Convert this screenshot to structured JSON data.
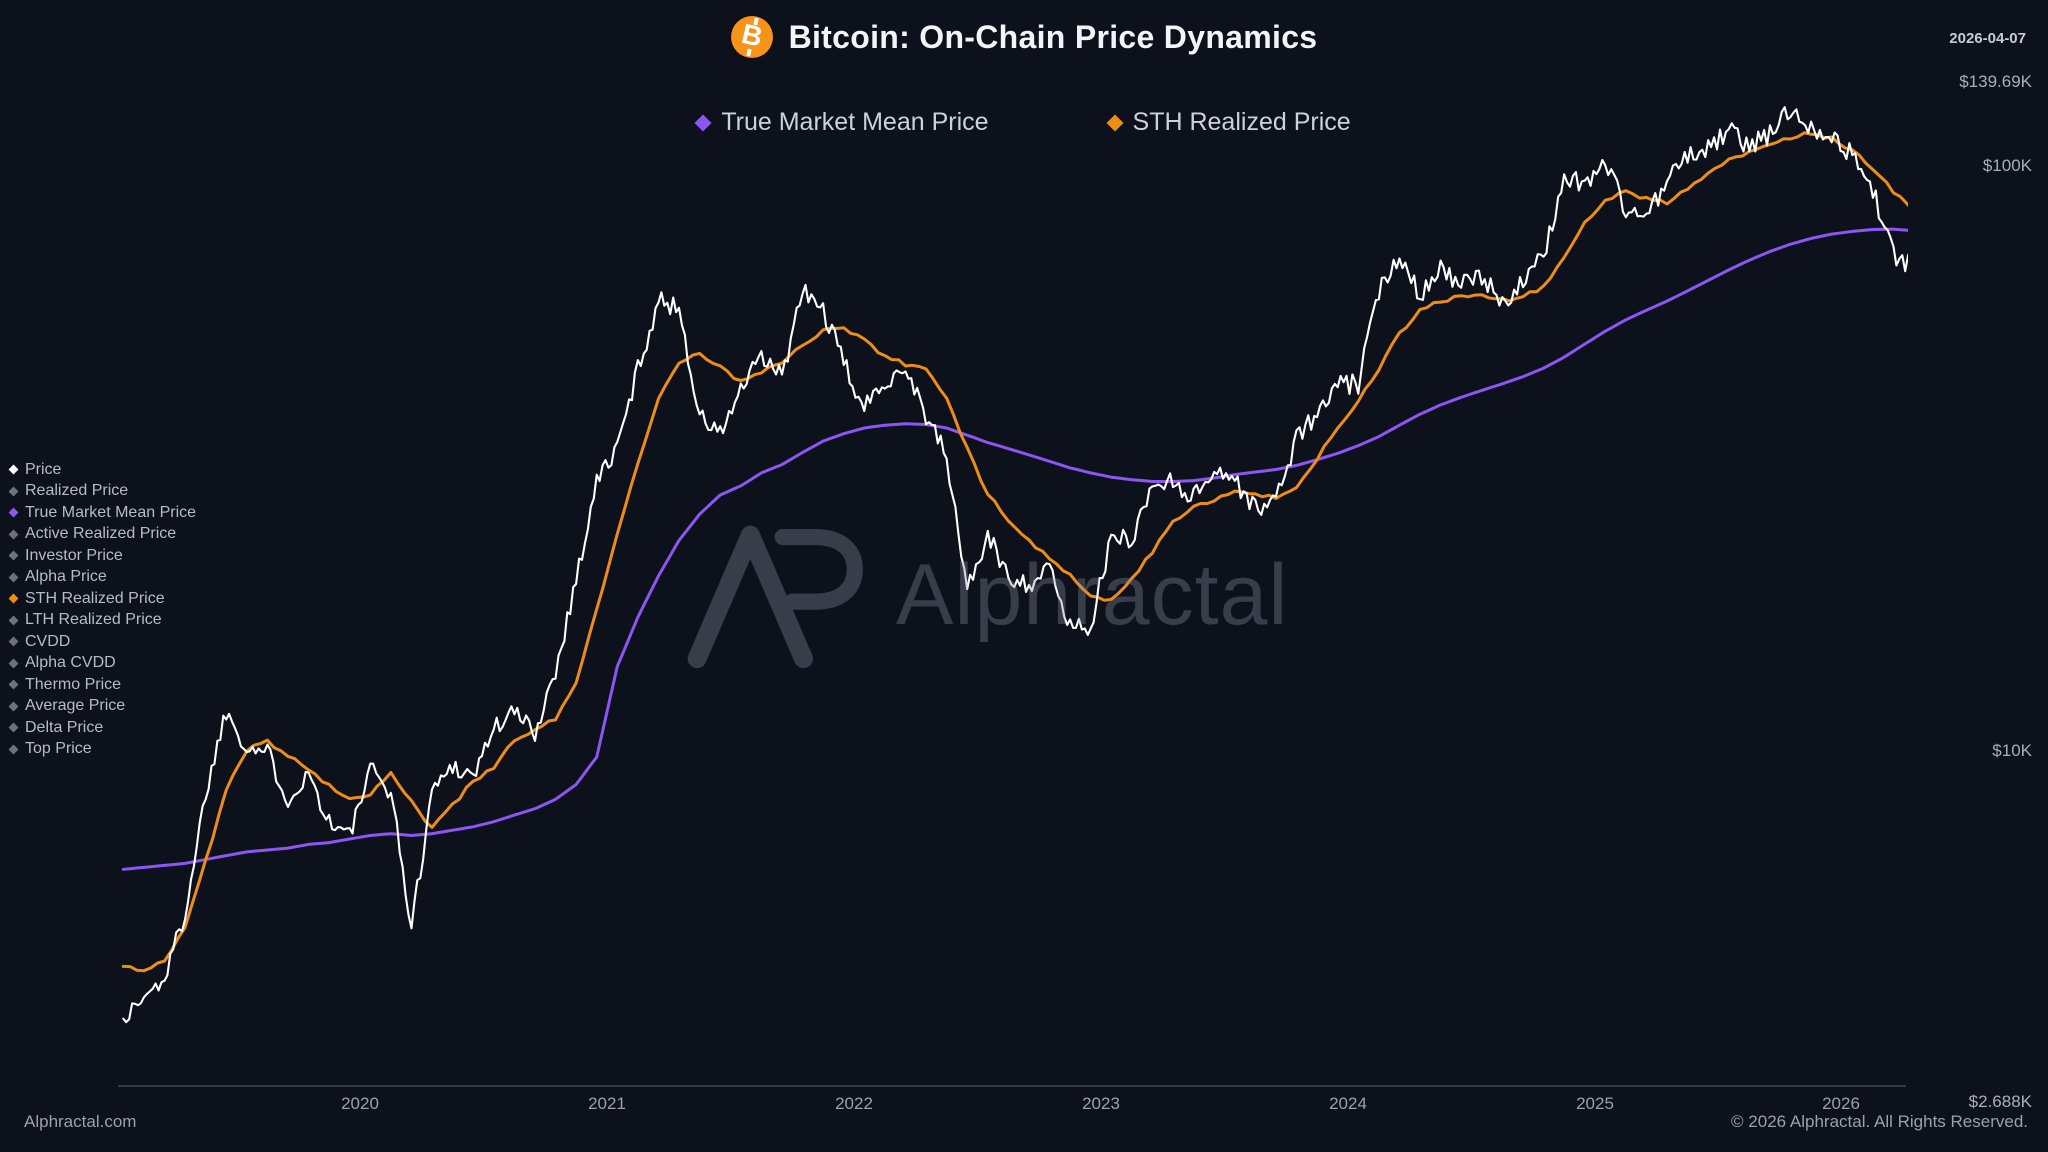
{
  "header": {
    "title": "Bitcoin: On-Chain Price Dynamics",
    "date": "2026-04-07",
    "icon_color": "#f7931a"
  },
  "top_legend": [
    {
      "label": "True Market Mean Price",
      "color": "#8d55f2"
    },
    {
      "label": "STH Realized Price",
      "color": "#ee8c18"
    }
  ],
  "sidebar": {
    "items": [
      {
        "label": "Price",
        "color": "#ffffff",
        "active": true
      },
      {
        "label": "Realized Price",
        "color": "#6b7280",
        "active": false
      },
      {
        "label": "True Market Mean Price",
        "color": "#8d55f2",
        "active": true
      },
      {
        "label": "Active Realized Price",
        "color": "#6b7280",
        "active": false
      },
      {
        "label": "Investor Price",
        "color": "#6b7280",
        "active": false
      },
      {
        "label": "Alpha Price",
        "color": "#6b7280",
        "active": false
      },
      {
        "label": "STH Realized Price",
        "color": "#ee8c18",
        "active": true
      },
      {
        "label": "LTH Realized Price",
        "color": "#6b7280",
        "active": false
      },
      {
        "label": "CVDD",
        "color": "#6b7280",
        "active": false
      },
      {
        "label": "Alpha CVDD",
        "color": "#6b7280",
        "active": false
      },
      {
        "label": "Thermo Price",
        "color": "#6b7280",
        "active": false
      },
      {
        "label": "Average Price",
        "color": "#6b7280",
        "active": false
      },
      {
        "label": "Delta Price",
        "color": "#6b7280",
        "active": false
      },
      {
        "label": "Top Price",
        "color": "#6b7280",
        "active": false
      }
    ]
  },
  "axes": {
    "y_labels": [
      {
        "text": "$139.69K",
        "value_usd": 139690
      },
      {
        "text": "$100K",
        "value_usd": 100000
      },
      {
        "text": "$10K",
        "value_usd": 10000
      },
      {
        "text": "$2.688K",
        "value_usd": 2688
      }
    ],
    "x_labels": [
      "2020",
      "2021",
      "2022",
      "2023",
      "2024",
      "2025",
      "2026"
    ]
  },
  "watermark": {
    "text": "Alphractal"
  },
  "footer": {
    "left": "Alphractal.com",
    "right": "© 2026 Alphractal. All Rights Reserved."
  },
  "chart_data": {
    "type": "line",
    "title": "Bitcoin: On-Chain Price Dynamics",
    "y_scale": "log",
    "y_axis_ticks_usd": [
      2688,
      10000,
      100000,
      139690
    ],
    "x_tick_years": [
      2020,
      2021,
      2022,
      2023,
      2024,
      2025,
      2026
    ],
    "x_start_year": 2019,
    "x_start_month": 1,
    "step": "monthly",
    "x_range_decimal_years": [
      2019.03,
      2026.27
    ],
    "legend_position": "top-center",
    "grid": false,
    "series": [
      {
        "name": "Price",
        "color": "#ffffff",
        "style": "volatile",
        "values_usd_thousands": [
          3.5,
          3.8,
          4.1,
          5.3,
          8.5,
          11.8,
          10.2,
          10.0,
          8.3,
          9.2,
          7.6,
          7.2,
          9.3,
          8.6,
          5.0,
          8.6,
          9.5,
          9.1,
          11.0,
          11.7,
          10.8,
          13.8,
          19.7,
          29.0,
          33.1,
          45.2,
          58.9,
          57.7,
          37.3,
          35.0,
          41.5,
          47.2,
          43.8,
          61.3,
          57.0,
          46.2,
          38.5,
          43.2,
          45.5,
          37.7,
          31.8,
          19.0,
          23.3,
          20.0,
          19.4,
          20.5,
          16.4,
          16.5,
          23.1,
          23.2,
          28.5,
          29.2,
          27.2,
          30.5,
          29.2,
          26.0,
          27.0,
          34.5,
          37.7,
          42.3,
          42.6,
          61.2,
          71.3,
          60.6,
          67.5,
          62.7,
          64.6,
          59.0,
          63.3,
          70.2,
          96.4,
          93.4,
          102.4,
          84.4,
          82.5,
          94.2,
          104.6,
          107.1,
          115.8,
          108.2,
          114.1,
          125.5,
          118.0,
          112.3,
          104.8,
          91.5,
          70.6,
          67.2
        ]
      },
      {
        "name": "True Market Mean Price",
        "color": "#8d55f2",
        "style": "smooth",
        "values_usd_thousands": [
          6.3,
          6.35,
          6.4,
          6.45,
          6.55,
          6.65,
          6.75,
          6.8,
          6.85,
          6.95,
          7.0,
          7.1,
          7.2,
          7.25,
          7.2,
          7.25,
          7.35,
          7.45,
          7.6,
          7.8,
          8.0,
          8.3,
          8.8,
          9.8,
          14.0,
          17.0,
          20.0,
          23.0,
          25.5,
          27.5,
          28.5,
          30.0,
          31.0,
          32.5,
          34.0,
          35.0,
          35.8,
          36.2,
          36.4,
          36.3,
          35.8,
          34.8,
          33.8,
          33.0,
          32.2,
          31.4,
          30.6,
          30.0,
          29.5,
          29.2,
          29.0,
          29.0,
          29.1,
          29.4,
          29.8,
          30.1,
          30.4,
          30.9,
          31.6,
          32.4,
          33.4,
          34.6,
          36.2,
          37.8,
          39.2,
          40.4,
          41.5,
          42.6,
          43.8,
          45.3,
          47.3,
          49.8,
          52.4,
          54.8,
          56.9,
          59.0,
          61.4,
          64.0,
          66.7,
          69.3,
          71.7,
          73.8,
          75.5,
          76.8,
          77.6,
          78.2,
          78.3,
          77.8
        ]
      },
      {
        "name": "STH Realized Price",
        "color": "#ee8c18",
        "style": "semi-smooth",
        "values_usd_thousands": [
          4.3,
          4.25,
          4.4,
          5.0,
          6.5,
          8.6,
          10.1,
          10.4,
          9.9,
          9.3,
          8.8,
          8.3,
          8.5,
          9.2,
          8.2,
          7.4,
          8.1,
          8.9,
          9.4,
          10.5,
          10.9,
          11.4,
          13.2,
          17.5,
          23.5,
          31.0,
          40.0,
          46.5,
          48.0,
          45.5,
          43.0,
          44.5,
          46.5,
          49.5,
          52.5,
          53.2,
          50.5,
          47.5,
          46.0,
          45.2,
          40.5,
          33.0,
          27.5,
          25.0,
          23.0,
          21.5,
          20.0,
          18.6,
          18.1,
          19.8,
          22.0,
          24.8,
          26.4,
          27.0,
          28.0,
          27.6,
          27.1,
          28.4,
          31.8,
          35.8,
          39.8,
          45.0,
          52.0,
          56.8,
          59.0,
          60.0,
          60.2,
          59.2,
          60.0,
          62.2,
          70.0,
          80.0,
          88.0,
          90.5,
          88.5,
          87.0,
          91.5,
          97.5,
          103.5,
          106.0,
          109.0,
          112.5,
          114.5,
          112.0,
          106.5,
          99.5,
          91.0,
          83.5
        ]
      }
    ]
  }
}
